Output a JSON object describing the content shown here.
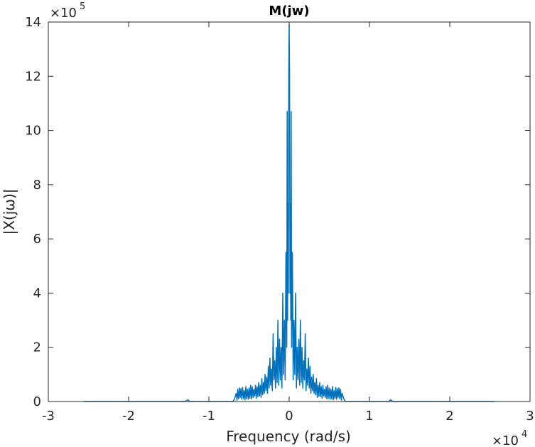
{
  "chart_data": {
    "type": "line",
    "title": "M(jw)",
    "xlabel": "Frequency (rad/s)",
    "ylabel": "|X(jω)|",
    "x_multiplier": {
      "base": "×10",
      "exponent": "4"
    },
    "y_multiplier": {
      "base": "×10",
      "exponent": "5"
    },
    "xlim": [
      -30000,
      30000
    ],
    "ylim": [
      0,
      1400000
    ],
    "xticks": [
      {
        "value": -30000,
        "label": "-3"
      },
      {
        "value": -20000,
        "label": "-2"
      },
      {
        "value": -10000,
        "label": "-1"
      },
      {
        "value": 0,
        "label": "0"
      },
      {
        "value": 10000,
        "label": "1"
      },
      {
        "value": 20000,
        "label": "2"
      },
      {
        "value": 30000,
        "label": "3"
      }
    ],
    "yticks": [
      {
        "value": 0,
        "label": "0"
      },
      {
        "value": 200000,
        "label": "2"
      },
      {
        "value": 400000,
        "label": "4"
      },
      {
        "value": 600000,
        "label": "6"
      },
      {
        "value": 800000,
        "label": "8"
      },
      {
        "value": 1000000,
        "label": "10"
      },
      {
        "value": 1200000,
        "label": "12"
      },
      {
        "value": 1400000,
        "label": "14"
      }
    ],
    "grid": false,
    "box": true,
    "line_color": "#0072BD",
    "series": [
      {
        "x": [
          -25600,
          -13000,
          -12600,
          -12400,
          -12000,
          -7000,
          -6800,
          -6600,
          -6500,
          -6400,
          -6300,
          -6200,
          -6100,
          -6000,
          -5900,
          -5800,
          -5700,
          -5600,
          -5500,
          -5400,
          -5300,
          -5200,
          -5100,
          -5000,
          -4900,
          -4800,
          -4700,
          -4600,
          -4500,
          -4400,
          -4300,
          -4200,
          -4100,
          -4000,
          -3900,
          -3800,
          -3700,
          -3600,
          -3500,
          -3400,
          -3300,
          -3200,
          -3100,
          -3000,
          -2900,
          -2800,
          -2700,
          -2600,
          -2500,
          -2400,
          -2300,
          -2200,
          -2100,
          -2000,
          -1900,
          -1800,
          -1700,
          -1600,
          -1500,
          -1400,
          -1300,
          -1200,
          -1100,
          -1000,
          -900,
          -800,
          -700,
          -600,
          -500,
          -400,
          -300,
          -250,
          -200,
          -150,
          -100,
          -50,
          0,
          50,
          100,
          150,
          200,
          250,
          300,
          400,
          500,
          600,
          700,
          800,
          900,
          1000,
          1100,
          1200,
          1300,
          1400,
          1500,
          1600,
          1700,
          1800,
          1900,
          2000,
          2100,
          2200,
          2300,
          2400,
          2500,
          2600,
          2700,
          2800,
          2900,
          3000,
          3100,
          3200,
          3300,
          3400,
          3500,
          3600,
          3700,
          3800,
          3900,
          4000,
          4100,
          4200,
          4300,
          4400,
          4500,
          4600,
          4700,
          4800,
          4900,
          5000,
          5100,
          5200,
          5300,
          5400,
          5500,
          5600,
          5700,
          5800,
          5900,
          6000,
          6100,
          6200,
          6300,
          6400,
          6500,
          6600,
          6800,
          7000,
          12000,
          12400,
          12600,
          13000,
          25600
        ],
        "y": [
          0,
          0,
          6000,
          0,
          0,
          0,
          10000,
          30000,
          5000,
          45000,
          10000,
          50000,
          15000,
          48000,
          8000,
          52000,
          12000,
          40000,
          6000,
          55000,
          10000,
          45000,
          8000,
          50000,
          12000,
          60000,
          10000,
          55000,
          15000,
          45000,
          20000,
          60000,
          12000,
          55000,
          18000,
          70000,
          20000,
          60000,
          15000,
          85000,
          25000,
          70000,
          30000,
          100000,
          40000,
          90000,
          30000,
          130000,
          50000,
          160000,
          60000,
          120000,
          40000,
          250000,
          80000,
          150000,
          50000,
          200000,
          70000,
          300000,
          60000,
          230000,
          80000,
          200000,
          50000,
          400000,
          100000,
          300000,
          80000,
          550000,
          200000,
          1070000,
          300000,
          730000,
          400000,
          1200000,
          1390000,
          1200000,
          400000,
          730000,
          300000,
          1070000,
          200000,
          550000,
          80000,
          300000,
          100000,
          400000,
          50000,
          200000,
          80000,
          230000,
          60000,
          300000,
          70000,
          200000,
          50000,
          150000,
          80000,
          250000,
          40000,
          120000,
          60000,
          160000,
          50000,
          130000,
          30000,
          90000,
          40000,
          100000,
          30000,
          70000,
          25000,
          85000,
          15000,
          60000,
          20000,
          70000,
          18000,
          55000,
          12000,
          60000,
          20000,
          45000,
          15000,
          55000,
          10000,
          60000,
          12000,
          50000,
          8000,
          45000,
          10000,
          55000,
          6000,
          40000,
          12000,
          52000,
          8000,
          48000,
          15000,
          50000,
          10000,
          45000,
          5000,
          30000,
          10000,
          0,
          0,
          0,
          6000,
          0,
          0
        ]
      }
    ]
  }
}
